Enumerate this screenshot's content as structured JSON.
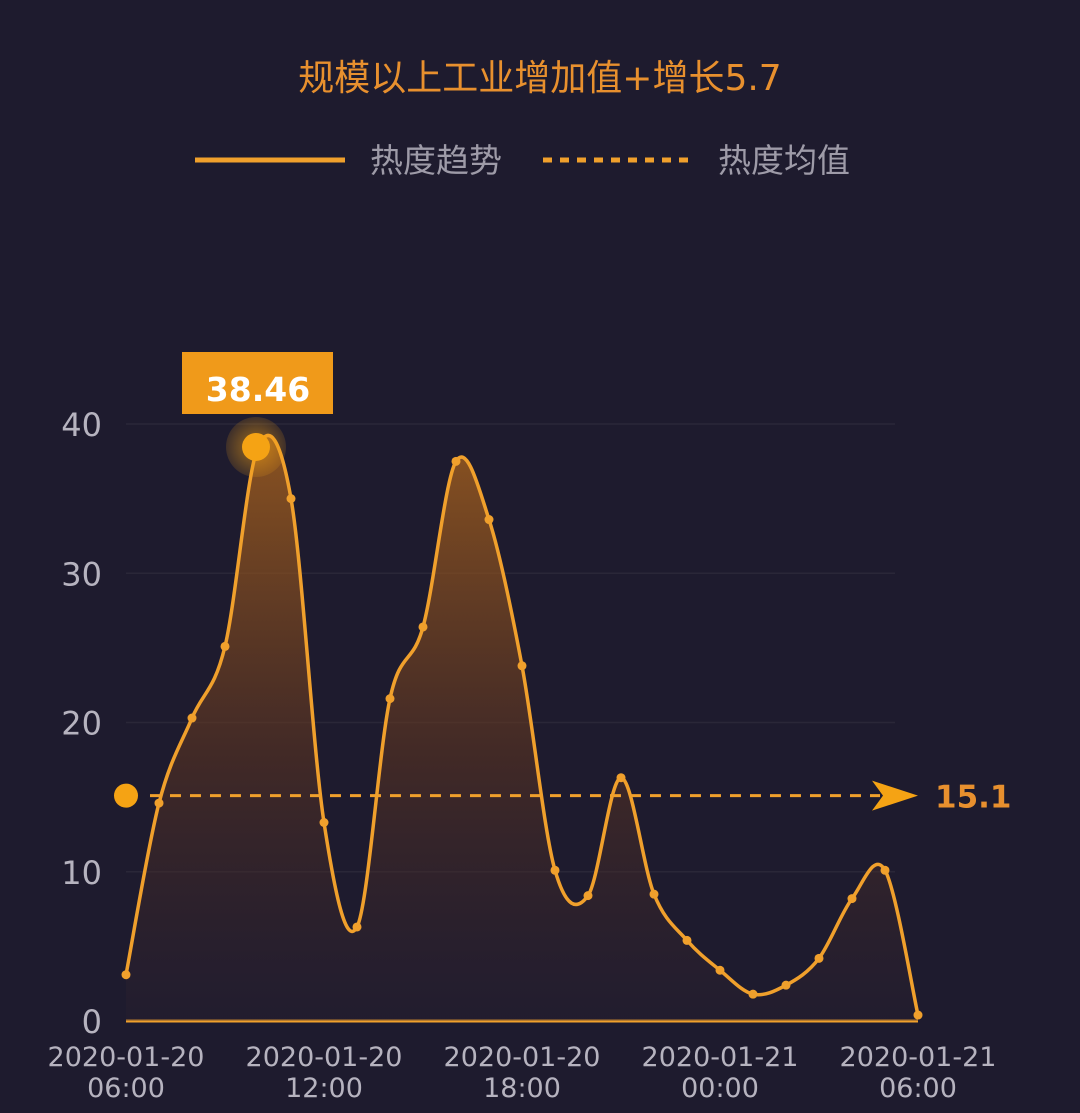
{
  "chart_data": {
    "type": "area",
    "title": "规模以上工业增加值+增长5.7",
    "legend": [
      {
        "label": "热度趋势",
        "style": "solid"
      },
      {
        "label": "热度均值",
        "style": "dashed"
      }
    ],
    "legend_placement": "top",
    "x_tick_labels": [
      [
        "2020-01-20",
        "06:00"
      ],
      [
        "2020-01-20",
        "12:00"
      ],
      [
        "2020-01-20",
        "18:00"
      ],
      [
        "2020-01-21",
        "00:00"
      ],
      [
        "2020-01-21",
        "06:00"
      ]
    ],
    "y_ticks": [
      "0",
      "10",
      "20",
      "30",
      "40"
    ],
    "ylim": [
      0,
      40
    ],
    "xlim": [
      0,
      24
    ],
    "x_hours_from_2020-01-20_06:00": [
      0,
      1,
      2,
      3,
      4,
      5,
      6,
      7,
      8,
      9,
      10,
      11,
      12,
      13,
      14,
      15,
      16,
      17,
      18,
      19,
      20,
      21,
      22,
      23,
      24
    ],
    "values": [
      3.1,
      14.6,
      20.3,
      25.1,
      38.46,
      35.0,
      13.3,
      6.3,
      21.6,
      26.4,
      37.5,
      33.6,
      23.8,
      10.1,
      8.4,
      16.3,
      8.5,
      5.4,
      3.4,
      1.8,
      2.4,
      4.2,
      8.2,
      10.1,
      0.4
    ],
    "peak": {
      "index": 4,
      "label": "38.46"
    },
    "average": {
      "value": 15.1,
      "label": "15.1"
    },
    "grid": true,
    "colors": {
      "background": "#1e1b2e",
      "line": "#f0a02c",
      "accent": "#f5a314",
      "text": "#e8902e",
      "axis_text": "#b6b3bf",
      "grid": "#2a2738"
    }
  }
}
